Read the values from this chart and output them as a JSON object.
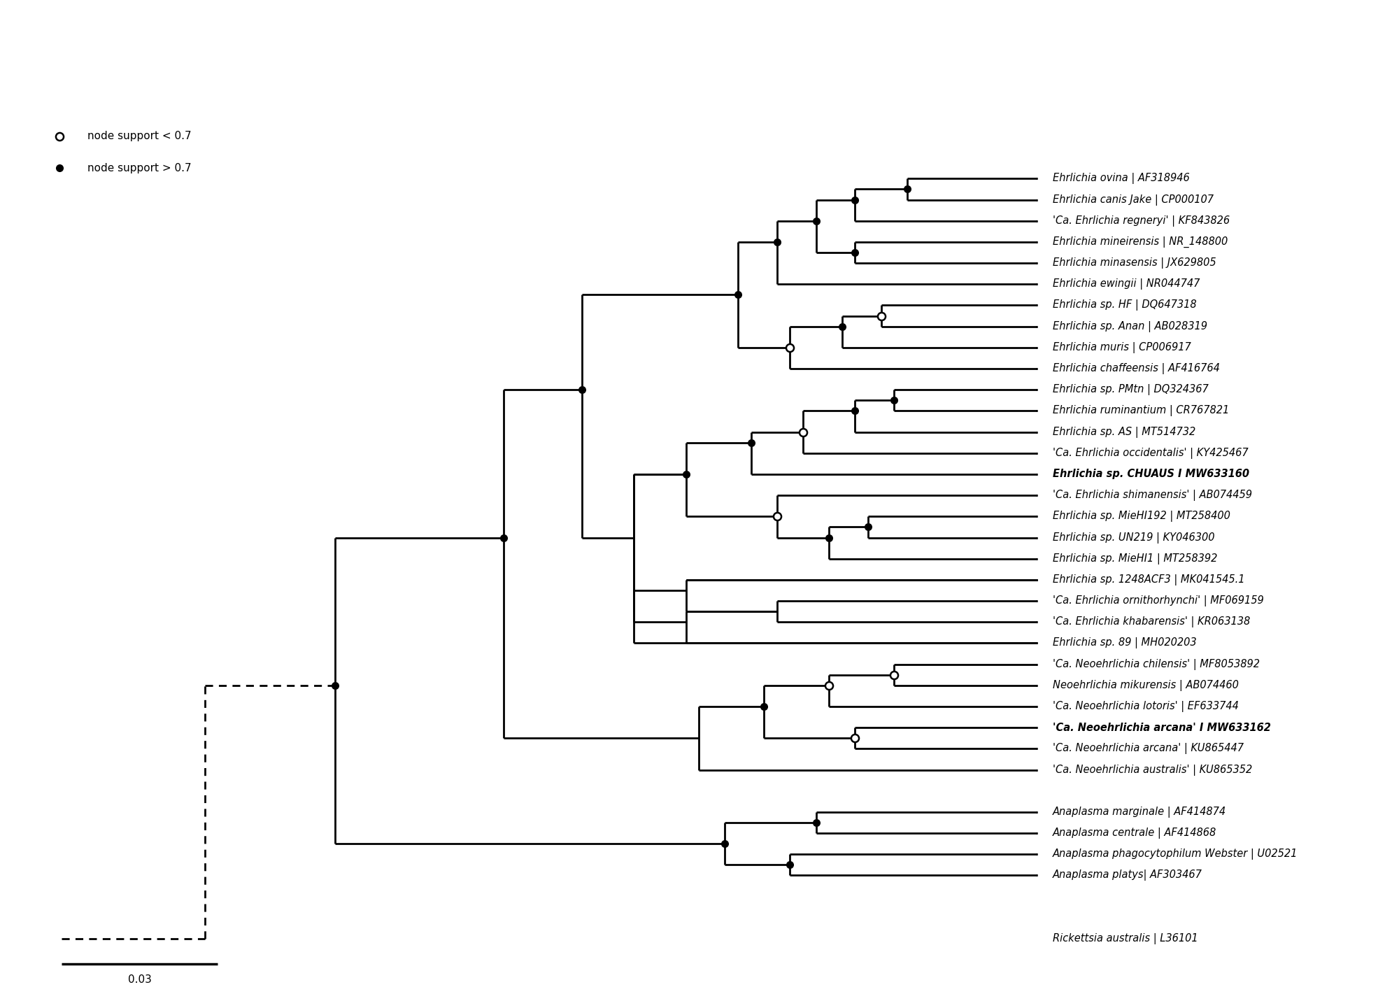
{
  "figsize": [
    19.8,
    14.21
  ],
  "dpi": 100,
  "background": "#ffffff",
  "scale_bar_label": "0.03",
  "legend_open": "node support < 0.7",
  "legend_filled": "node support > 0.7",
  "taxa": [
    {
      "name": "Ehrlichia ovina | AF318946",
      "y": 34,
      "bold": false
    },
    {
      "name": "Ehrlichia canis Jake | CP000107",
      "y": 33,
      "bold": false
    },
    {
      "name": "'Ca. Ehrlichia regneryi' | KF843826",
      "y": 32,
      "bold": false
    },
    {
      "name": "Ehrlichia mineirensis | NR_148800",
      "y": 31,
      "bold": false
    },
    {
      "name": "Ehrlichia minasensis | JX629805",
      "y": 30,
      "bold": false
    },
    {
      "name": "Ehrlichia ewingii | NR044747",
      "y": 29,
      "bold": false
    },
    {
      "name": "Ehrlichia sp. HF | DQ647318",
      "y": 28,
      "bold": false
    },
    {
      "name": "Ehrlichia sp. Anan | AB028319",
      "y": 27,
      "bold": false
    },
    {
      "name": "Ehrlichia muris | CP006917",
      "y": 26,
      "bold": false
    },
    {
      "name": "Ehrlichia chaffeensis | AF416764",
      "y": 25,
      "bold": false
    },
    {
      "name": "Ehrlichia sp. PMtn | DQ324367",
      "y": 24,
      "bold": false
    },
    {
      "name": "Ehrlichia ruminantium | CR767821",
      "y": 23,
      "bold": false
    },
    {
      "name": "Ehrlichia sp. AS | MT514732",
      "y": 22,
      "bold": false
    },
    {
      "name": "'Ca. Ehrlichia occidentalis' | KY425467",
      "y": 21,
      "bold": false
    },
    {
      "name": "Ehrlichia sp. CHUAUS I MW633160",
      "y": 20,
      "bold": true
    },
    {
      "name": "'Ca. Ehrlichia shimanensis' | AB074459",
      "y": 19,
      "bold": false
    },
    {
      "name": "Ehrlichia sp. MieHI192 | MT258400",
      "y": 18,
      "bold": false
    },
    {
      "name": "Ehrlichia sp. UN219 | KY046300",
      "y": 17,
      "bold": false
    },
    {
      "name": "Ehrlichia sp. MieHI1 | MT258392",
      "y": 16,
      "bold": false
    },
    {
      "name": "Ehrlichia sp. 1248ACF3 | MK041545.1",
      "y": 15,
      "bold": false
    },
    {
      "name": "'Ca. Ehrlichia ornithorhynchi' | MF069159",
      "y": 14,
      "bold": false
    },
    {
      "name": "'Ca. Ehrlichia khabarensis' | KR063138",
      "y": 13,
      "bold": false
    },
    {
      "name": "Ehrlichia sp. 89 | MH020203",
      "y": 12,
      "bold": false
    },
    {
      "name": "'Ca. Neoehrlichia chilensis' | MF8053892",
      "y": 11,
      "bold": false
    },
    {
      "name": "Neoehrlichia mikurensis | AB074460",
      "y": 10,
      "bold": false
    },
    {
      "name": "'Ca. Neoehrlichia lotoris' | EF633744",
      "y": 9,
      "bold": false
    },
    {
      "name": "'Ca. Neoehrlichia arcana' I MW633162",
      "y": 8,
      "bold": true
    },
    {
      "name": "'Ca. Neoehrlichia arcana' | KU865447",
      "y": 7,
      "bold": false
    },
    {
      "name": "'Ca. Neoehrlichia australis' | KU865352",
      "y": 6,
      "bold": false
    },
    {
      "name": "Anaplasma marginale | AF414874",
      "y": 4,
      "bold": false
    },
    {
      "name": "Anaplasma centrale | AF414868",
      "y": 3,
      "bold": false
    },
    {
      "name": "Anaplasma phagocytophilum Webster | U02521",
      "y": 2,
      "bold": false
    },
    {
      "name": "Anaplasma platys| AF303467",
      "y": 1,
      "bold": false
    },
    {
      "name": "Rickettsia australis | L36101",
      "y": -3,
      "bold": false
    }
  ]
}
